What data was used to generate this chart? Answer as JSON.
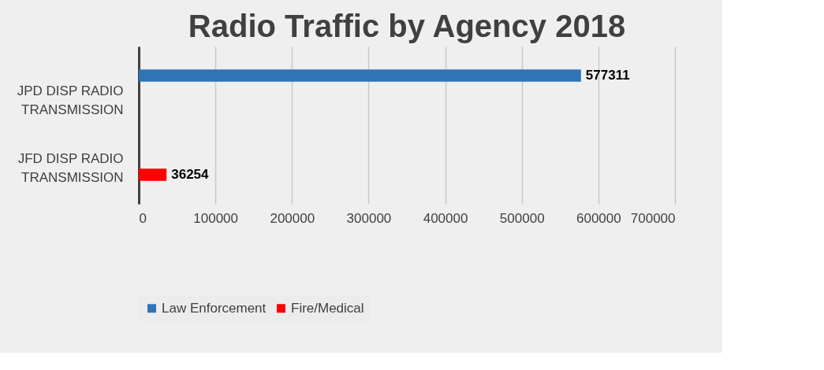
{
  "chart_data": {
    "type": "bar",
    "orientation": "horizontal",
    "title": "Radio Traffic by Agency 2018",
    "categories": [
      "JPD DISP RADIO TRANSMISSION",
      "JFD DISP RADIO TRANSMISSION"
    ],
    "series": [
      {
        "name": "Law Enforcement",
        "color": "#2e75b6",
        "values": [
          577311,
          null
        ]
      },
      {
        "name": "Fire/Medical",
        "color": "#ff0000",
        "values": [
          null,
          36254
        ]
      }
    ],
    "xlim": [
      0,
      700000
    ],
    "xticks": [
      0,
      100000,
      200000,
      300000,
      400000,
      500000,
      600000,
      700000
    ],
    "grid": "x",
    "legend": "bottom",
    "data_labels": true
  }
}
